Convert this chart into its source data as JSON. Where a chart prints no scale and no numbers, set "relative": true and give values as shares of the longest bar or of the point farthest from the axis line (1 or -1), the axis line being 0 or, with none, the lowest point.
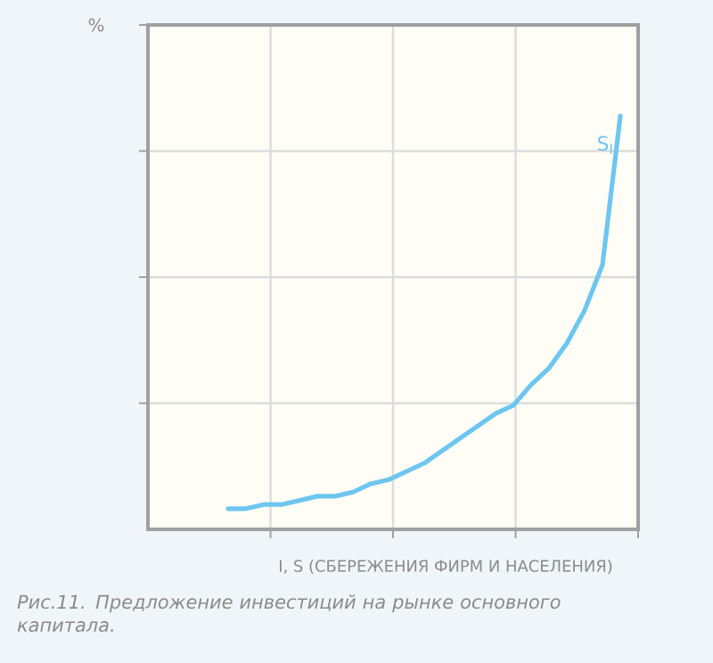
{
  "chart_data": {
    "type": "line",
    "relative": true,
    "xlabel": "I, S  (СБЕРЕЖЕНИЯ ФИРМ И НАСЕЛЕНИЯ)",
    "annotations": [
      "%",
      "Рис.11. Предложение инвестиций на рынке основного капитала."
    ],
    "categories": [
      null,
      null,
      null,
      null,
      null,
      null,
      null,
      null,
      null,
      null,
      null,
      null,
      null,
      null,
      null,
      null,
      null,
      null,
      null,
      null,
      null,
      null,
      null
    ],
    "grid": true,
    "legend": false,
    "marker": "none",
    "line_style": "solid",
    "series": [
      {
        "name": "S$_{I}$",
        "color": "#6ec6f0",
        "values": [
          0.05,
          0.05,
          0.06,
          0.06,
          0.07,
          0.08,
          0.08,
          0.09,
          0.11,
          0.12,
          0.14,
          0.16,
          0.19,
          0.22,
          0.25,
          0.28,
          0.3,
          0.35,
          0.39,
          0.45,
          0.53,
          0.64,
          1
        ]
      }
    ]
  }
}
